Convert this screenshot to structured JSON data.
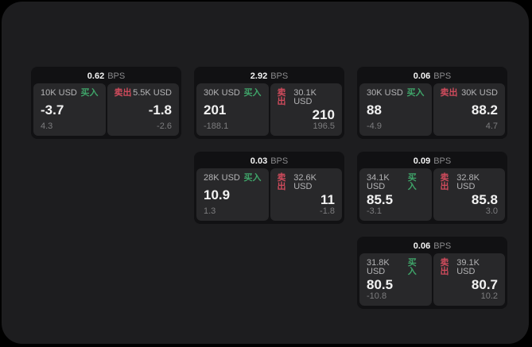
{
  "labels": {
    "bps_unit": "BPS",
    "buy": "买入",
    "sell": "卖出"
  },
  "colors": {
    "outer_background": "#000000",
    "panel_background": "#1d1d1f",
    "card_background": "#111113",
    "pane_background": "#28282a",
    "buy_green": "#3fa469",
    "sell_red": "#cf4b5c",
    "value_text": "#f2f2f2",
    "label_text": "#b4b4b6",
    "delta_text": "#7c7c7e"
  },
  "cards": [
    {
      "bps": "0.62",
      "buy": {
        "amount": "10K USD",
        "value": "-3.7",
        "delta": "4.3"
      },
      "sell": {
        "amount": "5.5K USD",
        "value": "-1.8",
        "delta": "-2.6"
      }
    },
    {
      "bps": "2.92",
      "buy": {
        "amount": "30K USD",
        "value": "201",
        "delta": "-188.1"
      },
      "sell": {
        "amount": "30.1K USD",
        "value": "210",
        "delta": "196.5"
      }
    },
    {
      "bps": "0.06",
      "buy": {
        "amount": "30K USD",
        "value": "88",
        "delta": "-4.9"
      },
      "sell": {
        "amount": "30K USD",
        "value": "88.2",
        "delta": "4.7"
      }
    },
    {
      "bps": "0.03",
      "buy": {
        "amount": "28K USD",
        "value": "10.9",
        "delta": "1.3"
      },
      "sell": {
        "amount": "32.6K USD",
        "value": "11",
        "delta": "-1.8"
      }
    },
    {
      "bps": "0.09",
      "buy": {
        "amount": "34.1K USD",
        "value": "85.5",
        "delta": "-3.1"
      },
      "sell": {
        "amount": "32.8K USD",
        "value": "85.8",
        "delta": "3.0"
      }
    },
    {
      "bps": "0.06",
      "buy": {
        "amount": "31.8K USD",
        "value": "80.5",
        "delta": "-10.8"
      },
      "sell": {
        "amount": "39.1K USD",
        "value": "80.7",
        "delta": "10.2"
      }
    }
  ]
}
